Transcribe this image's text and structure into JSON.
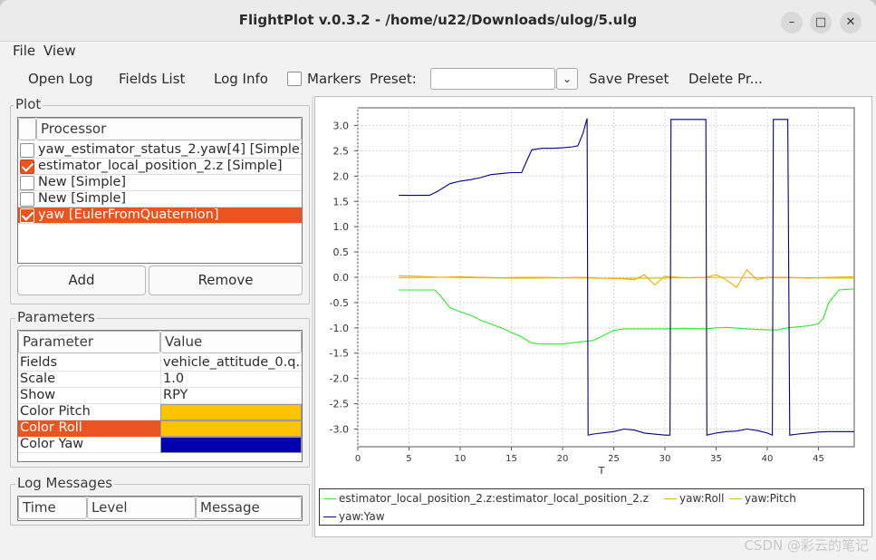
{
  "window": {
    "title": "FlightPlot v.0.3.2 - /home/u22/Downloads/ulog/5.ulg",
    "minimize_glyph": "–",
    "maximize_glyph": "□",
    "close_glyph": "✕"
  },
  "menu": [
    "File",
    "View"
  ],
  "toolbar": {
    "open_log": "Open Log",
    "fields_list": "Fields List",
    "log_info": "Log Info",
    "markers_label": "Markers",
    "markers_checked": false,
    "preset_label": "Preset:",
    "preset_value": "",
    "save_preset": "Save Preset",
    "delete_preset": "Delete Pr..."
  },
  "plot_panel": {
    "label": "Plot",
    "header": "Processor",
    "processors": [
      {
        "label": "yaw_estimator_status_2.yaw[4] [Simple]",
        "checked": false,
        "selected": false
      },
      {
        "label": "estimator_local_position_2.z [Simple]",
        "checked": true,
        "selected": false
      },
      {
        "label": "New [Simple]",
        "checked": false,
        "selected": false
      },
      {
        "label": "New [Simple]",
        "checked": false,
        "selected": false
      },
      {
        "label": "yaw [EulerFromQuaternion]",
        "checked": true,
        "selected": true
      }
    ],
    "add": "Add",
    "remove": "Remove"
  },
  "parameters": {
    "label": "Parameters",
    "headers": [
      "Parameter",
      "Value"
    ],
    "rows": [
      {
        "name": "Fields",
        "value": "vehicle_attitude_0.q..."
      },
      {
        "name": "Scale",
        "value": "1.0"
      },
      {
        "name": "Show",
        "value": "RPY"
      },
      {
        "name": "Color Pitch",
        "value": "",
        "color": "#ffc400"
      },
      {
        "name": "Color Roll",
        "value": "",
        "color": "#ffc400",
        "selected": true
      },
      {
        "name": "Color Yaw",
        "value": "",
        "color": "#0000b0"
      }
    ]
  },
  "log_messages": {
    "label": "Log Messages",
    "headers": [
      "Time",
      "Level",
      "Message"
    ]
  },
  "colors": {
    "accent": "#e95420",
    "green": "#2ee82e",
    "orange": "#e8b000",
    "navy": "#000080"
  },
  "chart_data": {
    "type": "line",
    "xlabel": "T",
    "ylabel": "",
    "xlim": [
      0,
      48.5
    ],
    "ylim": [
      -3.35,
      3.35
    ],
    "x_ticks": [
      0,
      5,
      10,
      15,
      20,
      25,
      30,
      35,
      40,
      45
    ],
    "y_ticks": [
      3.0,
      2.5,
      2.0,
      1.5,
      1.0,
      0.5,
      0.0,
      -0.5,
      -1.0,
      -1.5,
      -2.0,
      -2.5,
      -3.0
    ],
    "grid": true,
    "legend_position": "bottom",
    "series": [
      {
        "name": "estimator_local_position_2.z:estimator_local_position_2.z",
        "color": "#2ee82e",
        "x": [
          4,
          7.5,
          8,
          9,
          10,
          11,
          12,
          14,
          16,
          17,
          18,
          20,
          22,
          23,
          25,
          26,
          28,
          30,
          32,
          34,
          35,
          36,
          38,
          40,
          41,
          42,
          44,
          45,
          45.5,
          46,
          47,
          48.5
        ],
        "y": [
          -0.25,
          -0.25,
          -0.35,
          -0.6,
          -0.68,
          -0.75,
          -0.85,
          -1.0,
          -1.18,
          -1.3,
          -1.32,
          -1.32,
          -1.27,
          -1.25,
          -1.05,
          -1.02,
          -1.02,
          -1.02,
          -1.01,
          -1.02,
          -1.0,
          -0.99,
          -1.02,
          -1.04,
          -1.04,
          -1.0,
          -0.96,
          -0.92,
          -0.8,
          -0.5,
          -0.25,
          -0.23
        ]
      },
      {
        "name": "yaw:Roll",
        "color": "#e8b000",
        "x": [
          4,
          6,
          8,
          10,
          12,
          14,
          16,
          18,
          20,
          22,
          24,
          26,
          27,
          28,
          29,
          30,
          32,
          34,
          35,
          36,
          37,
          38,
          39,
          40,
          42,
          44,
          46,
          48.5
        ],
        "y": [
          0.03,
          0.02,
          0.0,
          0.01,
          0.0,
          -0.01,
          0.0,
          0.0,
          -0.01,
          0.0,
          -0.02,
          -0.03,
          -0.05,
          0.05,
          -0.15,
          0.02,
          -0.01,
          0.0,
          0.05,
          -0.05,
          -0.2,
          0.15,
          -0.05,
          0.0,
          0.0,
          -0.02,
          0.0,
          0.01
        ]
      },
      {
        "name": "yaw:Pitch",
        "color": "#d7c000",
        "x": [
          4,
          8,
          12,
          16,
          20,
          24,
          28,
          32,
          36,
          40,
          44,
          48.5
        ],
        "y": [
          -0.01,
          0.0,
          -0.01,
          -0.02,
          -0.01,
          -0.02,
          -0.02,
          -0.01,
          0.0,
          -0.01,
          -0.01,
          -0.02
        ]
      },
      {
        "name": "yaw:Yaw",
        "color": "#000080",
        "x": [
          4,
          7,
          7.8,
          9,
          10,
          11,
          12,
          13,
          14,
          15,
          16,
          16.5,
          17,
          18,
          19,
          20,
          21,
          21.5,
          22,
          22.4,
          22.5,
          23,
          25,
          26,
          27,
          28,
          30,
          30.5,
          30.6,
          32,
          34,
          34.1,
          35,
          36,
          37,
          38,
          39,
          40,
          40.5,
          40.6,
          42,
          42.2,
          43,
          44,
          45,
          46,
          47,
          48.5
        ],
        "y": [
          1.62,
          1.62,
          1.7,
          1.85,
          1.9,
          1.93,
          1.97,
          2.03,
          2.05,
          2.07,
          2.07,
          2.3,
          2.52,
          2.55,
          2.55,
          2.56,
          2.58,
          2.6,
          2.85,
          3.14,
          -3.12,
          -3.1,
          -3.05,
          -3.0,
          -3.02,
          -3.08,
          -3.12,
          -3.12,
          3.12,
          3.12,
          3.12,
          -3.12,
          -3.08,
          -3.05,
          -3.04,
          -3.0,
          -3.03,
          -3.08,
          -3.12,
          3.12,
          3.12,
          -3.12,
          -3.1,
          -3.08,
          -3.06,
          -3.05,
          -3.05,
          -3.05
        ]
      }
    ]
  },
  "watermark": "CSDN @彩云的笔记"
}
